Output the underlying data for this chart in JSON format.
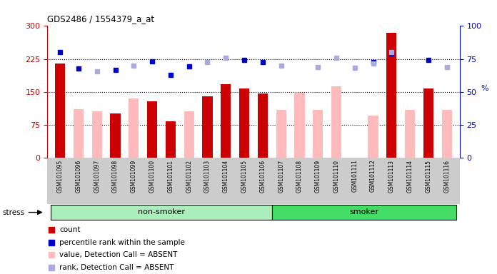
{
  "title": "GDS2486 / 1554379_a_at",
  "samples": [
    "GSM101095",
    "GSM101096",
    "GSM101097",
    "GSM101098",
    "GSM101099",
    "GSM101100",
    "GSM101101",
    "GSM101102",
    "GSM101103",
    "GSM101104",
    "GSM101105",
    "GSM101106",
    "GSM101107",
    "GSM101108",
    "GSM101109",
    "GSM101110",
    "GSM101111",
    "GSM101112",
    "GSM101113",
    "GSM101114",
    "GSM101115",
    "GSM101116"
  ],
  "n_nonsmoker": 12,
  "n_smoker": 10,
  "count_values": [
    215,
    null,
    null,
    100,
    null,
    128,
    83,
    null,
    140,
    168,
    158,
    146,
    null,
    null,
    null,
    null,
    null,
    null,
    285,
    null,
    157,
    null
  ],
  "absent_values": [
    null,
    110,
    105,
    null,
    135,
    null,
    null,
    105,
    null,
    null,
    null,
    null,
    108,
    147,
    108,
    162,
    null,
    95,
    null,
    108,
    null,
    108
  ],
  "pct_rank": [
    240,
    203,
    null,
    200,
    null,
    220,
    188,
    208,
    null,
    null,
    223,
    218,
    null,
    null,
    null,
    null,
    null,
    218,
    237,
    null,
    222,
    null
  ],
  "rank_absent": [
    null,
    null,
    197,
    null,
    210,
    null,
    null,
    null,
    218,
    228,
    null,
    null,
    210,
    null,
    207,
    227,
    205,
    215,
    240,
    null,
    null,
    207
  ],
  "left_ylim": [
    0,
    300
  ],
  "right_ylim": [
    0,
    100
  ],
  "left_yticks": [
    0,
    75,
    150,
    225,
    300
  ],
  "right_yticks": [
    0,
    25,
    50,
    75,
    100
  ],
  "bar_color_count": "#cc0000",
  "bar_color_absent": "#ffbbbb",
  "sq_color_rank": "#0000cc",
  "sq_color_rank_absent": "#aaaadd",
  "non_smoker_color": "#aaeebb",
  "smoker_color": "#44dd66",
  "xtick_bg_color": "#cccccc",
  "legend_items": [
    [
      "#cc0000",
      "count"
    ],
    [
      "#0000cc",
      "percentile rank within the sample"
    ],
    [
      "#ffbbbb",
      "value, Detection Call = ABSENT"
    ],
    [
      "#aaaadd",
      "rank, Detection Call = ABSENT"
    ]
  ]
}
